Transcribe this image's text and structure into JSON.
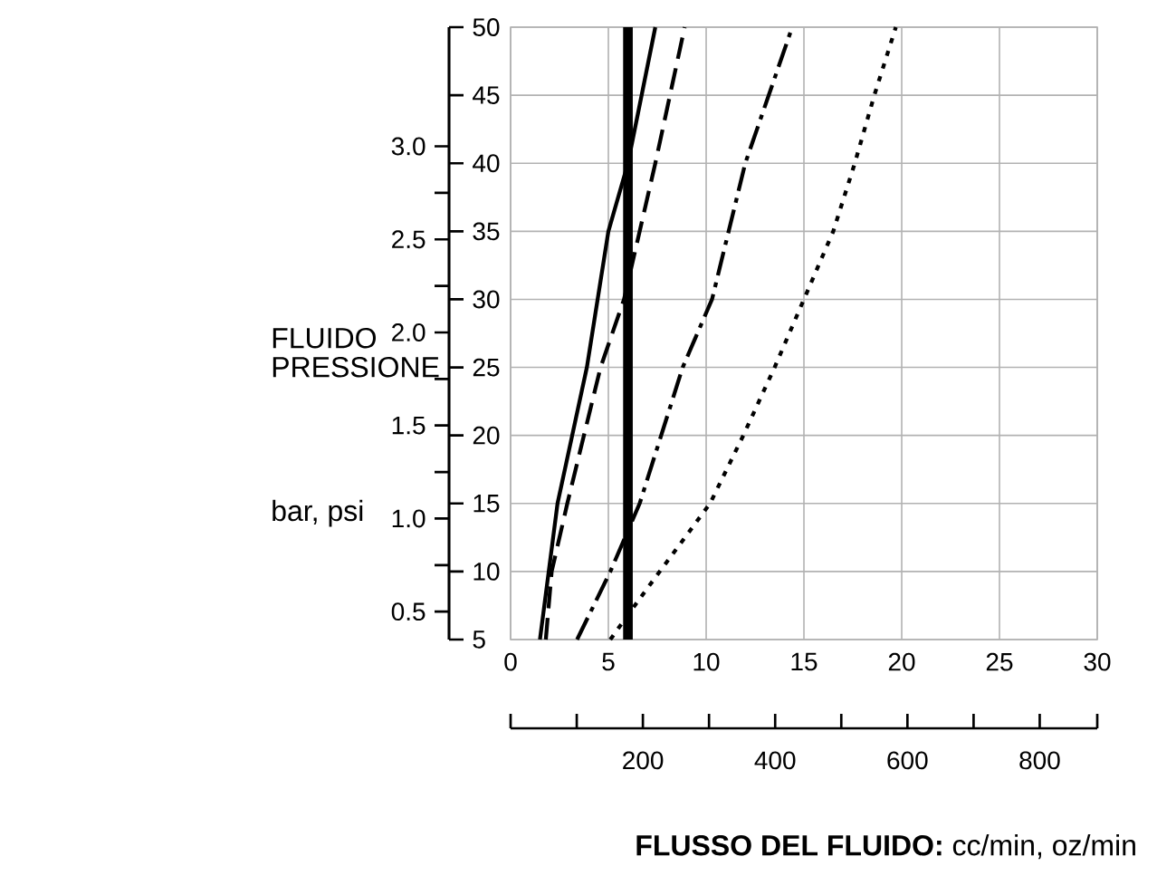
{
  "chart_data": {
    "type": "line",
    "xlabel": "**FLUSSO DEL FLUIDO:** cc/min, oz/min",
    "ylabel": "FLUIDO PRESSIONE",
    "annotations": [
      "bar, psi"
    ],
    "xlim": [
      0,
      30
    ],
    "xticks": [
      0,
      5,
      10,
      15,
      20,
      25,
      30
    ],
    "ylim": [
      0.35,
      3.64
    ],
    "yticks": [
      0.5,
      {
        "value": 1,
        "label": "1.0"
      },
      1.5,
      {
        "value": 2,
        "label": "2.0"
      },
      2.5,
      {
        "value": 3,
        "label": "3.0"
      }
    ],
    "y2lim": [
      5,
      50
    ],
    "y2ticks": [
      5,
      10,
      15,
      20,
      25,
      30,
      35,
      40,
      45,
      50
    ],
    "x2lim": [
      0,
      887
    ],
    "x2ticks": [
      {
        "value": 0,
        "label": null
      },
      {
        "value": 100,
        "label": null
      },
      200,
      {
        "value": 300,
        "label": null
      },
      400,
      {
        "value": 500,
        "label": null
      },
      600,
      {
        "value": 700,
        "label": null
      },
      800,
      {
        "value": 887,
        "label": null
      }
    ],
    "grid": true,
    "series": [
      {
        "color": "#000000",
        "line_style": "solid",
        "axis": "y2",
        "x": [
          1.5,
          2.4,
          3.9,
          5.0,
          6.0,
          7.4
        ],
        "values": [
          5,
          15,
          25,
          35,
          40,
          50
        ]
      },
      {
        "color": "#000000",
        "line_style": "dashed",
        "axis": "y2",
        "x": [
          1.8,
          2.1,
          2.9,
          4.6,
          5.8,
          7.4,
          8.9
        ],
        "values": [
          5,
          10,
          15,
          25,
          30,
          40,
          50
        ]
      },
      {
        "color": "#000000",
        "line_style": "dashdot",
        "axis": "y2",
        "x": [
          3.4,
          5.1,
          6.6,
          8.8,
          10.3,
          12.0,
          13.2,
          14.4
        ],
        "values": [
          5,
          10,
          15,
          25,
          30,
          40,
          45,
          50
        ]
      },
      {
        "color": "#000000",
        "line_style": "dotted",
        "axis": "y2",
        "x": [
          5.1,
          6.6,
          10.2,
          11.9,
          13.5,
          15.0,
          16.5,
          17.6,
          18.6,
          19.7
        ],
        "values": [
          5,
          8,
          15,
          20,
          25,
          30,
          35,
          40,
          45,
          50
        ]
      }
    ],
    "ref_lines": [
      {
        "axis": "x",
        "value": 6,
        "color": "#000000",
        "line_style": "solid"
      }
    ]
  }
}
